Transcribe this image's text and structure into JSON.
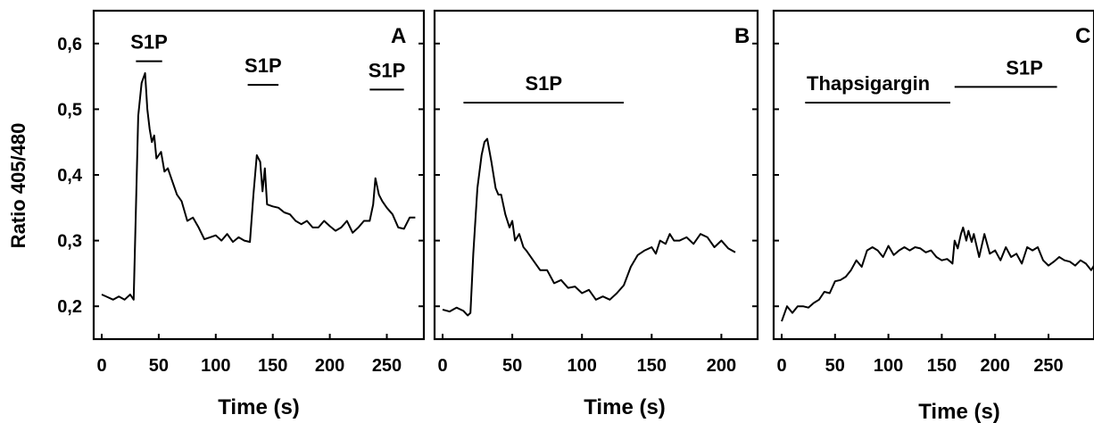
{
  "y_axis_label": "Ratio 405/480",
  "y_ticks": [
    "0,2",
    "0,3",
    "0,4",
    "0,5",
    "0,6"
  ],
  "chart_data": [
    {
      "type": "line",
      "panel_label": "A",
      "xlabel": "Time (s)",
      "ylabel": "Ratio 405/480",
      "xlim": [
        0,
        275
      ],
      "ylim": [
        0.15,
        0.65
      ],
      "x_ticks": [
        0,
        50,
        100,
        150,
        200,
        250
      ],
      "annotations": [
        {
          "text": "S1P",
          "x_start": 30,
          "x_end": 53,
          "y": 0.573
        },
        {
          "text": "S1P",
          "x_start": 128,
          "x_end": 155,
          "y": 0.537
        },
        {
          "text": "S1P",
          "x_start": 235,
          "x_end": 265,
          "y": 0.53
        }
      ],
      "series": [
        {
          "x": [
            0,
            5,
            10,
            15,
            20,
            25,
            28,
            32,
            35,
            38,
            40,
            42,
            44,
            46,
            48,
            50,
            52,
            55,
            58,
            62,
            66,
            70,
            75,
            80,
            85,
            90,
            95,
            100,
            105,
            110,
            115,
            120,
            125,
            130,
            133,
            136,
            139,
            141,
            143,
            145,
            150,
            155,
            160,
            165,
            170,
            175,
            180,
            185,
            190,
            195,
            200,
            205,
            210,
            215,
            220,
            225,
            230,
            235,
            238,
            240,
            243,
            246,
            250,
            255,
            260,
            265,
            270,
            275
          ],
          "y": [
            0.218,
            0.214,
            0.21,
            0.215,
            0.21,
            0.218,
            0.21,
            0.49,
            0.54,
            0.555,
            0.5,
            0.47,
            0.45,
            0.46,
            0.425,
            0.43,
            0.435,
            0.405,
            0.41,
            0.39,
            0.37,
            0.36,
            0.33,
            0.335,
            0.32,
            0.302,
            0.305,
            0.308,
            0.3,
            0.31,
            0.298,
            0.305,
            0.3,
            0.298,
            0.37,
            0.43,
            0.42,
            0.375,
            0.41,
            0.355,
            0.352,
            0.35,
            0.343,
            0.34,
            0.33,
            0.325,
            0.33,
            0.32,
            0.32,
            0.33,
            0.322,
            0.315,
            0.32,
            0.33,
            0.312,
            0.32,
            0.33,
            0.33,
            0.355,
            0.395,
            0.37,
            0.36,
            0.35,
            0.34,
            0.32,
            0.318,
            0.335,
            0.335
          ]
        }
      ]
    },
    {
      "type": "line",
      "panel_label": "B",
      "xlabel": "Time (s)",
      "ylabel": "",
      "xlim": [
        0,
        212
      ],
      "ylim": [
        0.15,
        0.65
      ],
      "x_ticks": [
        0,
        50,
        100,
        150,
        200
      ],
      "annotations": [
        {
          "text": "S1P",
          "x_start": 15,
          "x_end": 130,
          "y": 0.51
        }
      ],
      "series": [
        {
          "x": [
            0,
            5,
            10,
            15,
            18,
            20,
            22,
            25,
            28,
            30,
            32,
            35,
            38,
            40,
            42,
            45,
            48,
            50,
            52,
            55,
            58,
            60,
            65,
            70,
            75,
            80,
            85,
            90,
            95,
            100,
            105,
            110,
            115,
            120,
            125,
            130,
            135,
            140,
            145,
            150,
            153,
            156,
            160,
            163,
            166,
            170,
            175,
            180,
            185,
            190,
            195,
            200,
            205,
            210
          ],
          "y": [
            0.195,
            0.192,
            0.198,
            0.193,
            0.186,
            0.19,
            0.28,
            0.38,
            0.43,
            0.45,
            0.455,
            0.42,
            0.38,
            0.37,
            0.37,
            0.34,
            0.32,
            0.33,
            0.3,
            0.31,
            0.29,
            0.285,
            0.27,
            0.255,
            0.255,
            0.235,
            0.24,
            0.228,
            0.23,
            0.22,
            0.225,
            0.21,
            0.215,
            0.21,
            0.22,
            0.232,
            0.26,
            0.278,
            0.285,
            0.29,
            0.28,
            0.3,
            0.295,
            0.31,
            0.3,
            0.3,
            0.305,
            0.295,
            0.31,
            0.305,
            0.29,
            0.3,
            0.288,
            0.282
          ]
        }
      ]
    },
    {
      "type": "line",
      "panel_label": "C",
      "xlabel": "Time (s)",
      "ylabel": "",
      "xlim": [
        0,
        300
      ],
      "ylim": [
        0.15,
        0.65
      ],
      "x_ticks": [
        0,
        50,
        100,
        150,
        200,
        250
      ],
      "annotations": [
        {
          "text": "Thapsigargin",
          "x_start": 22,
          "x_end": 158,
          "y": 0.51
        },
        {
          "text": "S1P",
          "x_start": 162,
          "x_end": 258,
          "y": 0.534
        }
      ],
      "series": [
        {
          "x": [
            0,
            5,
            10,
            15,
            20,
            25,
            30,
            35,
            40,
            45,
            50,
            55,
            60,
            65,
            70,
            75,
            80,
            85,
            90,
            95,
            100,
            105,
            110,
            115,
            120,
            125,
            130,
            135,
            140,
            145,
            150,
            155,
            158,
            160,
            162,
            165,
            168,
            170,
            173,
            175,
            178,
            180,
            185,
            190,
            195,
            200,
            205,
            210,
            215,
            220,
            225,
            230,
            235,
            240,
            245,
            250,
            255,
            260,
            265,
            270,
            275,
            280,
            285,
            290,
            295,
            300
          ],
          "y": [
            0.177,
            0.2,
            0.19,
            0.2,
            0.2,
            0.198,
            0.205,
            0.21,
            0.222,
            0.22,
            0.238,
            0.24,
            0.245,
            0.255,
            0.27,
            0.26,
            0.285,
            0.29,
            0.285,
            0.275,
            0.292,
            0.278,
            0.285,
            0.29,
            0.285,
            0.29,
            0.288,
            0.282,
            0.285,
            0.275,
            0.27,
            0.272,
            0.268,
            0.265,
            0.3,
            0.288,
            0.31,
            0.32,
            0.3,
            0.315,
            0.298,
            0.31,
            0.275,
            0.31,
            0.28,
            0.285,
            0.27,
            0.29,
            0.275,
            0.28,
            0.265,
            0.29,
            0.285,
            0.29,
            0.27,
            0.262,
            0.268,
            0.275,
            0.27,
            0.268,
            0.262,
            0.27,
            0.265,
            0.255,
            0.268,
            0.29
          ]
        }
      ]
    }
  ]
}
